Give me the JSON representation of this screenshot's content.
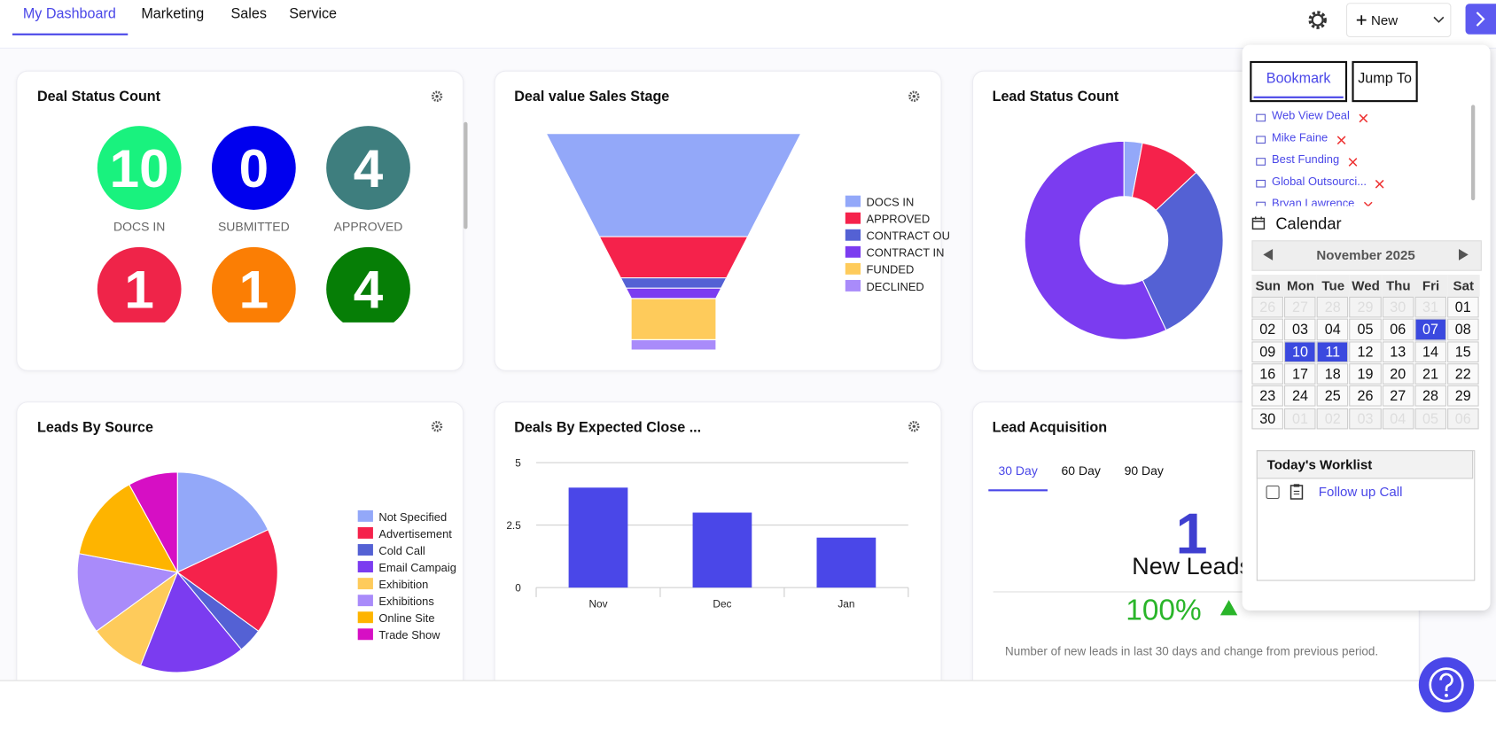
{
  "nav": {
    "tabs": [
      "My Dashboard",
      "Marketing",
      "Sales",
      "Service"
    ],
    "new_button": "New"
  },
  "deal_status": {
    "title": "Deal Status Count",
    "items": [
      {
        "value": 10,
        "label": "DOCS IN",
        "color": "#19f27e"
      },
      {
        "value": 0,
        "label": "SUBMITTED",
        "color": "#0000ee"
      },
      {
        "value": 4,
        "label": "APPROVED",
        "color": "#3e7e7e"
      },
      {
        "value": 1,
        "color": "#ef2449"
      },
      {
        "value": 1,
        "color": "#fb7e04"
      },
      {
        "value": 4,
        "color": "#067e06"
      }
    ]
  },
  "funnel": {
    "type": "funnel",
    "title": "Deal value Sales Stage",
    "categories": [
      "DOCS IN",
      "APPROVED",
      "CONTRACT OU",
      "CONTRACT IN",
      "FUNDED",
      "DECLINED"
    ],
    "values": [
      10,
      4,
      1,
      1,
      4,
      1
    ],
    "colors": [
      "#93a8f9",
      "#f5224b",
      "#5461d4",
      "#7b3cf0",
      "#fecb5b",
      "#a98bfa"
    ]
  },
  "lead_status": {
    "type": "donut",
    "title": "Lead Status Count",
    "values": [
      3,
      10,
      30,
      57
    ],
    "colors": [
      "#93a8f9",
      "#f5224b",
      "#5461d4",
      "#7b3cf0"
    ]
  },
  "leads_by_source": {
    "type": "pie",
    "title": "Leads By Source",
    "categories": [
      "Not Specified",
      "Advertisement",
      "Cold Call",
      "Email Campaig",
      "Exhibition",
      "Exhibitions",
      "Online Site",
      "Trade Show"
    ],
    "values": [
      18,
      17,
      4,
      17,
      9,
      13,
      14,
      8
    ],
    "colors": [
      "#93a8f9",
      "#f5224b",
      "#5461d4",
      "#7b3cf0",
      "#fecb5b",
      "#a98bfa",
      "#feb400",
      "#d60fc4"
    ]
  },
  "deals_by_close": {
    "type": "bar",
    "title": "Deals By Expected Close ...",
    "categories": [
      "Nov",
      "Dec",
      "Jan"
    ],
    "values": [
      4,
      3,
      2
    ],
    "color": "#4a47e8",
    "ylim": [
      0,
      5
    ],
    "yticks": [
      0,
      2.5,
      5
    ],
    "grid": true
  },
  "lead_acquisition": {
    "title": "Lead Acquisition",
    "tabs": [
      "30 Day",
      "60 Day",
      "90 Day"
    ],
    "count": 1,
    "count_label": "New Leads",
    "change": "100%",
    "note": "Number of new leads in last 30 days and change from previous period."
  },
  "bookmarks": {
    "tabs": [
      "Bookmark",
      "Jump To"
    ],
    "items": [
      "Web View Deal",
      "Mike Faine",
      "Best Funding",
      "Global Outsourci...",
      "Bryan Lawrence"
    ]
  },
  "calendar": {
    "title": "Calendar",
    "month": "November 2025",
    "weekdays": [
      "Sun",
      "Mon",
      "Tue",
      "Wed",
      "Thu",
      "Fri",
      "Sat"
    ],
    "weeks": [
      [
        "26",
        "27",
        "28",
        "29",
        "30",
        "31",
        "01"
      ],
      [
        "02",
        "03",
        "04",
        "05",
        "06",
        "07",
        "08"
      ],
      [
        "09",
        "10",
        "11",
        "12",
        "13",
        "14",
        "15"
      ],
      [
        "16",
        "17",
        "18",
        "19",
        "20",
        "21",
        "22"
      ],
      [
        "23",
        "24",
        "25",
        "26",
        "27",
        "28",
        "29"
      ],
      [
        "30",
        "01",
        "02",
        "03",
        "04",
        "05",
        "06"
      ]
    ],
    "highlighted": [
      "07",
      "10",
      "11"
    ]
  },
  "worklist": {
    "title": "Today's Worklist",
    "items": [
      "Follow up Call"
    ]
  }
}
